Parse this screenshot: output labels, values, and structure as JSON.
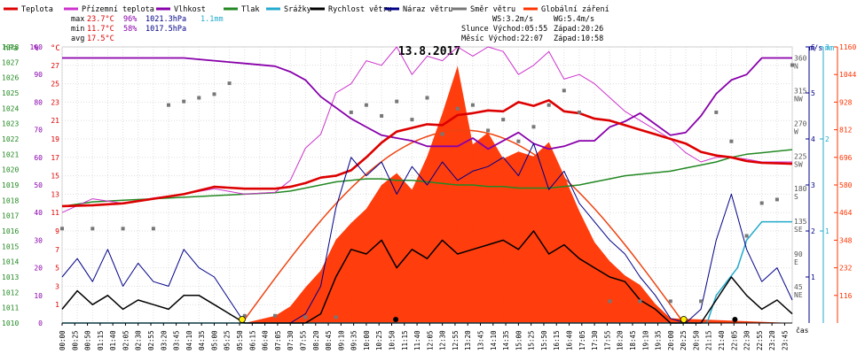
{
  "chart_data": {
    "type": "line",
    "title": "13.8.2017",
    "xlabel": "čas",
    "legend_placement": "top",
    "grid": true,
    "legend": [
      {
        "name": "Teplota",
        "color": "#dd0000"
      },
      {
        "name": "Přízemní teplota",
        "color": "#cc33cc"
      },
      {
        "name": "Vlhkost",
        "color": "#8800aa"
      },
      {
        "name": "Tlak",
        "color": "#228822"
      },
      {
        "name": "Srážky",
        "color": "#22aacc"
      },
      {
        "name": "Rychlost větru",
        "color": "#000000"
      },
      {
        "name": "Náraz větru",
        "color": "#000088"
      },
      {
        "name": "Směr větru",
        "color": "#777777"
      },
      {
        "name": "Globální záření",
        "color": "#ff3300"
      }
    ],
    "summary": {
      "max": {
        "label": "max",
        "temp": "23.7°C",
        "hum": "96%",
        "press": "1021.3hPa",
        "rain": "1.1mm"
      },
      "min": {
        "label": "min",
        "temp": "11.7°C",
        "hum": "58%",
        "press": "1017.5hPa"
      },
      "avg": {
        "label": "avg",
        "temp": "17.5°C"
      }
    },
    "info": {
      "ws": "WS:3.2m/s",
      "wg": "WG:5.4m/s",
      "sun": "Slunce Východ:05:55",
      "sun_set": "Západ:20:26",
      "moon": "Měsíc Východ:22:07",
      "moon_set": "Západ:10:58"
    },
    "axes": {
      "hpa": {
        "label": "hPa",
        "min": 1010,
        "max": 1028,
        "ticks": [
          1010,
          1011,
          1012,
          1013,
          1014,
          1015,
          1016,
          1017,
          1018,
          1019,
          1020,
          1021,
          1022,
          1023,
          1024,
          1025,
          1026,
          1027,
          1028
        ]
      },
      "pct": {
        "label": "%",
        "min": 0,
        "max": 100,
        "ticks": [
          0,
          10,
          20,
          30,
          40,
          50,
          60,
          70,
          80,
          90,
          100
        ]
      },
      "temp": {
        "label": "°C",
        "min": -1,
        "max": 29,
        "ticks": [
          1,
          3,
          5,
          7,
          9,
          11,
          13,
          15,
          17,
          19,
          21,
          23,
          25,
          27
        ]
      },
      "wind": {
        "label": "m/s",
        "min": 0,
        "max": 6,
        "ticks": [
          1,
          2,
          3,
          4,
          5,
          6
        ]
      },
      "rain": {
        "label": "mm",
        "min": 0,
        "max": 3,
        "ticks": [
          1,
          2,
          3
        ]
      },
      "rad": {
        "min": 0,
        "max": 1160,
        "ticks": [
          116,
          232,
          348,
          464,
          580,
          696,
          812,
          928,
          1044,
          1160
        ]
      },
      "dir": {
        "ticks": [
          {
            "v": 45,
            "l": "NE"
          },
          {
            "v": 90,
            "l": "E"
          },
          {
            "v": 135,
            "l": "SE"
          },
          {
            "v": 180,
            "l": "S"
          },
          {
            "v": 225,
            "l": "SW"
          },
          {
            "v": 270,
            "l": "W"
          },
          {
            "v": 315,
            "l": "NW"
          },
          {
            "v": 360,
            "l": "N"
          }
        ]
      }
    },
    "time_labels": [
      "00:00",
      "00:25",
      "00:50",
      "01:15",
      "01:40",
      "02:05",
      "02:30",
      "02:55",
      "03:20",
      "03:45",
      "04:10",
      "04:35",
      "05:00",
      "05:25",
      "05:50",
      "06:15",
      "06:40",
      "07:05",
      "07:30",
      "07:55",
      "08:20",
      "08:45",
      "09:10",
      "09:35",
      "10:00",
      "10:25",
      "10:50",
      "11:15",
      "11:40",
      "12:05",
      "12:30",
      "12:55",
      "13:20",
      "13:45",
      "14:10",
      "14:35",
      "15:00",
      "15:25",
      "15:50",
      "16:15",
      "16:40",
      "17:05",
      "17:30",
      "17:55",
      "18:20",
      "18:45",
      "19:10",
      "19:35",
      "20:00",
      "20:25",
      "20:50",
      "21:15",
      "21:40",
      "22:05",
      "22:30",
      "22:55",
      "23:20",
      "23:45"
    ],
    "series": [
      {
        "name": "Teplota",
        "unit": "°C",
        "x_hours": [
          0,
          1,
          2,
          3,
          4,
          5,
          6,
          7,
          7.5,
          8,
          8.5,
          9,
          9.5,
          10,
          10.5,
          11,
          11.5,
          12,
          12.5,
          13,
          13.5,
          14,
          14.5,
          15,
          15.5,
          16,
          16.5,
          17,
          17.5,
          18,
          18.5,
          19,
          19.5,
          20,
          20.5,
          21,
          21.5,
          22,
          22.5,
          23,
          24
        ],
        "values": [
          11.7,
          11.8,
          12.0,
          12.5,
          13.0,
          13.8,
          13.6,
          13.6,
          13.8,
          14.2,
          14.8,
          15.0,
          15.6,
          17.0,
          18.6,
          19.8,
          20.2,
          20.6,
          20.5,
          21.6,
          21.8,
          22.1,
          22.0,
          23.0,
          22.6,
          23.2,
          22.0,
          21.8,
          21.2,
          21.0,
          20.5,
          20.0,
          19.5,
          19.0,
          18.5,
          17.6,
          17.2,
          17.0,
          16.6,
          16.4,
          16.3
        ]
      },
      {
        "name": "Přízemní teplota",
        "unit": "°C",
        "x_hours": [
          0,
          1,
          2,
          3,
          4,
          5,
          6,
          7,
          7.5,
          8,
          8.5,
          9,
          9.5,
          10,
          10.5,
          11,
          11.5,
          12,
          12.5,
          13,
          13.5,
          14,
          14.5,
          15,
          15.5,
          16,
          16.5,
          17,
          17.5,
          18,
          18.5,
          19,
          19.5,
          20,
          20.5,
          21,
          21.5,
          22,
          22.5,
          23,
          24
        ],
        "values": [
          11.0,
          12.5,
          12.0,
          12.6,
          13.0,
          13.6,
          13.0,
          13.2,
          14.5,
          18.0,
          19.5,
          24.0,
          25.0,
          27.5,
          27.0,
          29.0,
          26.0,
          28.0,
          27.5,
          29.0,
          28.0,
          29.0,
          28.5,
          26.0,
          27.0,
          28.5,
          25.5,
          26.0,
          25.0,
          23.5,
          22.0,
          21.0,
          20.0,
          19.0,
          17.5,
          16.5,
          17.0,
          17.0,
          16.8,
          16.5,
          16.5
        ]
      },
      {
        "name": "Vlhkost",
        "unit": "%",
        "x_hours": [
          0,
          1,
          2,
          3,
          4,
          5,
          6,
          7,
          7.5,
          8,
          8.5,
          9,
          9.5,
          10,
          10.5,
          11,
          11.5,
          12,
          12.5,
          13,
          13.5,
          14,
          14.5,
          15,
          15.5,
          16,
          16.5,
          17,
          17.5,
          18,
          18.5,
          19,
          19.5,
          20,
          20.5,
          21,
          21.5,
          22,
          22.5,
          23,
          24
        ],
        "values": [
          96,
          96,
          96,
          96,
          96,
          95,
          94,
          93,
          91,
          88,
          82,
          78,
          74,
          71,
          68,
          67,
          66,
          64,
          64,
          64,
          67,
          63,
          66,
          69,
          65,
          63,
          64,
          66,
          66,
          71,
          73,
          76,
          72,
          68,
          69,
          75,
          83,
          88,
          90,
          96,
          96
        ]
      },
      {
        "name": "Tlak",
        "unit": "hPa",
        "x_hours": [
          0,
          1,
          2,
          3,
          4,
          5,
          6,
          7,
          7.5,
          8,
          8.5,
          9,
          9.5,
          10,
          10.5,
          11,
          11.5,
          12,
          12.5,
          13,
          13.5,
          14,
          14.5,
          15,
          15.5,
          16,
          16.5,
          17,
          17.5,
          18,
          18.5,
          19,
          19.5,
          20,
          20.5,
          21,
          21.5,
          22,
          22.5,
          23,
          24
        ],
        "values": [
          1017.6,
          1017.9,
          1018.0,
          1018.1,
          1018.2,
          1018.3,
          1018.4,
          1018.5,
          1018.6,
          1018.8,
          1019.0,
          1019.2,
          1019.3,
          1019.4,
          1019.4,
          1019.3,
          1019.3,
          1019.2,
          1019.1,
          1019.0,
          1019.0,
          1018.9,
          1018.9,
          1018.8,
          1018.8,
          1018.8,
          1018.9,
          1019.0,
          1019.2,
          1019.4,
          1019.6,
          1019.7,
          1019.8,
          1019.9,
          1020.1,
          1020.3,
          1020.5,
          1020.8,
          1021.0,
          1021.1,
          1021.3
        ]
      },
      {
        "name": "Srážky",
        "unit": "mm",
        "x_hours": [
          0,
          21.2,
          21.5,
          22.2,
          22.5,
          23.0,
          24
        ],
        "values": [
          0,
          0,
          0.3,
          0.6,
          0.9,
          1.1,
          1.1
        ]
      },
      {
        "name": "Rychlost větru",
        "unit": "m/s",
        "x_hours": [
          0,
          0.5,
          1,
          1.5,
          2,
          2.5,
          3,
          3.5,
          4,
          4.5,
          5,
          5.5,
          6,
          6.5,
          7,
          7.5,
          8,
          8.5,
          9,
          9.5,
          10,
          10.5,
          11,
          11.5,
          12,
          12.5,
          13,
          13.5,
          14,
          14.5,
          15,
          15.5,
          16,
          16.5,
          17,
          17.5,
          18,
          18.5,
          19,
          19.5,
          20,
          20.5,
          21,
          21.5,
          22,
          22.5,
          23,
          23.5,
          24
        ],
        "values": [
          0.3,
          0.7,
          0.4,
          0.6,
          0.3,
          0.5,
          0.4,
          0.3,
          0.6,
          0.6,
          0.4,
          0.2,
          0,
          0,
          0,
          0,
          0,
          0.2,
          1.0,
          1.6,
          1.5,
          1.8,
          1.2,
          1.6,
          1.4,
          1.8,
          1.5,
          1.6,
          1.7,
          1.8,
          1.6,
          2.0,
          1.5,
          1.7,
          1.4,
          1.2,
          1.0,
          0.9,
          0.5,
          0.3,
          0,
          0,
          0,
          0.5,
          1.0,
          0.6,
          0.3,
          0.5,
          0.2
        ]
      },
      {
        "name": "Náraz větru",
        "unit": "m/s",
        "x_hours": [
          0,
          0.5,
          1,
          1.5,
          2,
          2.5,
          3,
          3.5,
          4,
          4.5,
          5,
          5.5,
          6,
          6.5,
          7,
          7.5,
          8,
          8.5,
          9,
          9.5,
          10,
          10.5,
          11,
          11.5,
          12,
          12.5,
          13,
          13.5,
          14,
          14.5,
          15,
          15.5,
          16,
          16.5,
          17,
          17.5,
          18,
          18.5,
          19,
          19.5,
          20,
          20.5,
          21,
          21.5,
          22,
          22.5,
          23,
          23.5,
          24
        ],
        "values": [
          1.0,
          1.4,
          0.9,
          1.6,
          0.8,
          1.3,
          0.9,
          0.8,
          1.6,
          1.2,
          1.0,
          0.5,
          0,
          0,
          0,
          0,
          0.2,
          0.8,
          2.5,
          3.6,
          3.2,
          3.5,
          2.8,
          3.4,
          3.0,
          3.5,
          3.1,
          3.3,
          3.4,
          3.6,
          3.2,
          3.9,
          2.9,
          3.3,
          2.6,
          2.2,
          1.8,
          1.5,
          1.0,
          0.6,
          0.1,
          0,
          0.3,
          1.8,
          2.8,
          1.6,
          0.9,
          1.2,
          0.5
        ]
      },
      {
        "name": "Směr větru",
        "unit": "°",
        "x_hours": [
          0,
          1,
          2,
          3,
          3.5,
          4,
          4.5,
          5,
          5.5,
          6,
          7,
          8,
          9,
          9.5,
          10,
          10.5,
          11,
          11.5,
          12,
          12.5,
          13,
          13.5,
          14,
          14.5,
          15,
          15.5,
          16,
          16.5,
          17,
          18,
          19,
          20,
          21,
          21.5,
          22,
          22.5,
          23,
          23.5,
          24
        ],
        "values": [
          130,
          130,
          130,
          130,
          300,
          305,
          310,
          315,
          330,
          10,
          10,
          8,
          8,
          290,
          300,
          285,
          305,
          280,
          310,
          260,
          295,
          300,
          265,
          280,
          250,
          270,
          300,
          320,
          290,
          30,
          30,
          30,
          30,
          290,
          250,
          120,
          165,
          170,
          355
        ]
      },
      {
        "name": "Globální záření",
        "unit": "W/m²",
        "x_hours": [
          0,
          6,
          7,
          7.5,
          8,
          8.5,
          9,
          9.5,
          10,
          10.5,
          11,
          11.5,
          12,
          12.5,
          13,
          13.5,
          14,
          14.5,
          15,
          15.5,
          16,
          16.5,
          17,
          17.5,
          18,
          18.5,
          19,
          19.5,
          20,
          24
        ],
        "values": [
          0,
          0,
          30,
          70,
          150,
          220,
          350,
          420,
          480,
          580,
          630,
          560,
          700,
          880,
          1080,
          750,
          800,
          690,
          720,
          700,
          760,
          620,
          470,
          340,
          260,
          200,
          160,
          80,
          20,
          0
        ]
      }
    ]
  }
}
